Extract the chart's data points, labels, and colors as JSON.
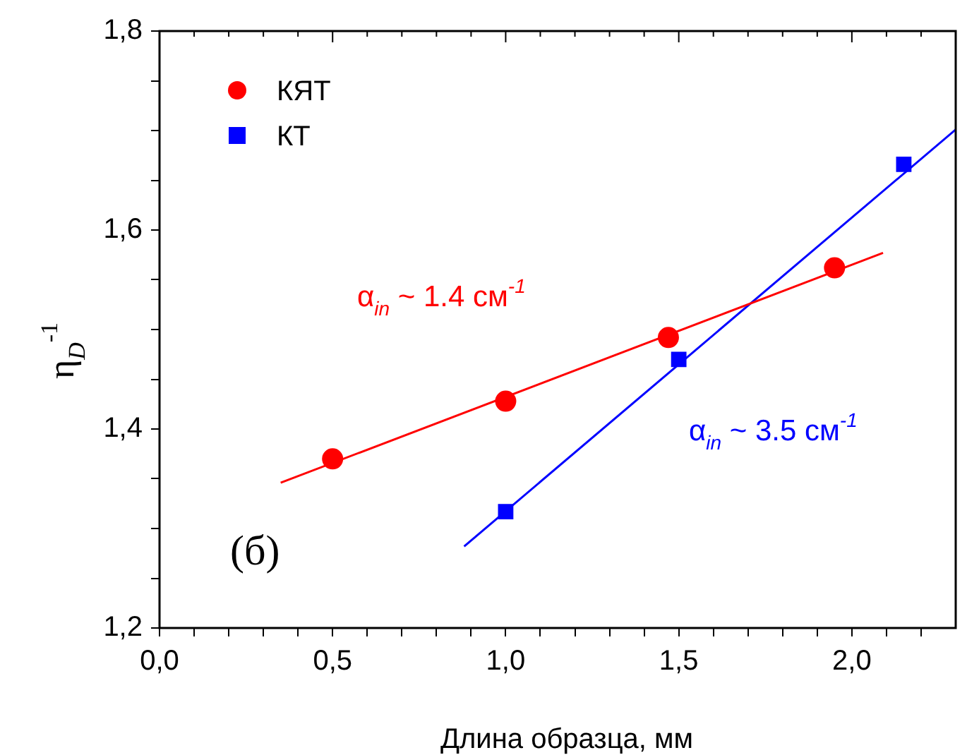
{
  "chart_data": {
    "type": "scatter",
    "xlabel": "Длина образца, мм",
    "ylabel": "η$_{D}$$^{-1}$",
    "xlim": [
      0,
      2.3
    ],
    "ylim": [
      1.2,
      1.8
    ],
    "xticks": [
      {
        "value": 0,
        "label": "0,0"
      },
      {
        "value": 0.1,
        "label": null
      },
      {
        "value": 0.2,
        "label": null
      },
      {
        "value": 0.3,
        "label": null
      },
      {
        "value": 0.4,
        "label": null
      },
      {
        "value": 0.5,
        "label": "0,5"
      },
      {
        "value": 0.6,
        "label": null
      },
      {
        "value": 0.7,
        "label": null
      },
      {
        "value": 0.8,
        "label": null
      },
      {
        "value": 0.9,
        "label": null
      },
      {
        "value": 1.0,
        "label": "1,0"
      },
      {
        "value": 1.1,
        "label": null
      },
      {
        "value": 1.2,
        "label": null
      },
      {
        "value": 1.3,
        "label": null
      },
      {
        "value": 1.4,
        "label": null
      },
      {
        "value": 1.5,
        "label": "1,5"
      },
      {
        "value": 1.6,
        "label": null
      },
      {
        "value": 1.7,
        "label": null
      },
      {
        "value": 1.8,
        "label": null
      },
      {
        "value": 1.9,
        "label": null
      },
      {
        "value": 2.0,
        "label": "2,0"
      },
      {
        "value": 2.1,
        "label": null
      },
      {
        "value": 2.2,
        "label": null
      }
    ],
    "yticks": [
      {
        "value": 1.2,
        "label": "1,2"
      },
      {
        "value": 1.25,
        "label": null
      },
      {
        "value": 1.3,
        "label": null
      },
      {
        "value": 1.35,
        "label": null
      },
      {
        "value": 1.4,
        "label": "1,4"
      },
      {
        "value": 1.45,
        "label": null
      },
      {
        "value": 1.5,
        "label": null
      },
      {
        "value": 1.55,
        "label": null
      },
      {
        "value": 1.6,
        "label": "1,6"
      },
      {
        "value": 1.65,
        "label": null
      },
      {
        "value": 1.7,
        "label": null
      },
      {
        "value": 1.75,
        "label": null
      },
      {
        "value": 1.8,
        "label": "1,8"
      }
    ],
    "legend": "top left",
    "grid": false,
    "series": [
      {
        "name": "КЯТ",
        "marker": "circle",
        "color": "#ff0000",
        "x": [
          0.5,
          1.0,
          1.47,
          1.95
        ],
        "values": [
          1.37,
          1.428,
          1.492,
          1.562
        ]
      },
      {
        "name": "КТ",
        "marker": "square",
        "color": "#0000ff",
        "x": [
          1.0,
          1.5,
          2.15
        ],
        "values": [
          1.317,
          1.47,
          1.666
        ]
      },
      {
        "type": "line",
        "marker": "none",
        "color": "#ff0000",
        "x": [
          0.35,
          2.09
        ],
        "values": [
          1.346,
          1.577
        ]
      },
      {
        "type": "line",
        "marker": "none",
        "color": "#0000ff",
        "x": [
          0.88,
          2.3
        ],
        "values": [
          1.282,
          1.701
        ]
      }
    ],
    "annotations": [
      "α$_{in}$ ~ 1.4 см$^{-1}$",
      "α$_{in}$ ~ 3.5 см$^{-1}$",
      "(б)"
    ]
  }
}
